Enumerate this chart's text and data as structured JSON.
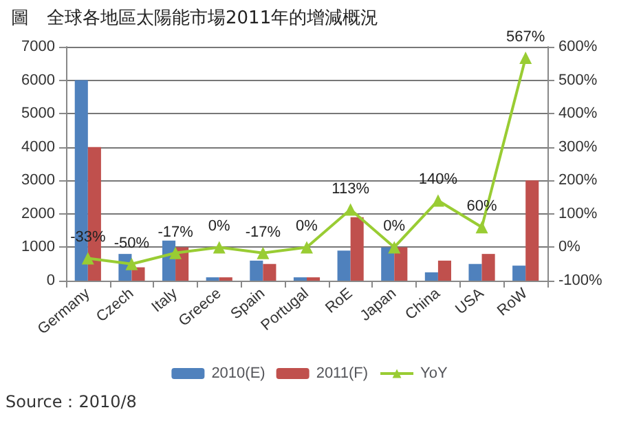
{
  "chart_data": {
    "type": "bar",
    "title": "圖　全球各地區太陽能市場2011年的增減概況",
    "categories": [
      "Germany",
      "Czech",
      "Italy",
      "Greece",
      "Spain",
      "Portugal",
      "RoE",
      "Japan",
      "China",
      "USA",
      "RoW"
    ],
    "series": [
      {
        "name": "2010(E)",
        "color": "#4f81bd",
        "values": [
          6000,
          800,
          1200,
          100,
          600,
          100,
          900,
          1000,
          250,
          500,
          450
        ]
      },
      {
        "name": "2011(F)",
        "color": "#c0504d",
        "values": [
          4000,
          400,
          1000,
          100,
          500,
          100,
          1900,
          1000,
          600,
          800,
          3000
        ]
      },
      {
        "name": "YoY",
        "type": "line",
        "axis": "y2",
        "color": "#99cc33",
        "values": [
          -33,
          -50,
          -17,
          0,
          -17,
          0,
          113,
          0,
          140,
          60,
          567
        ],
        "value_labels": [
          "-33%",
          "-50%",
          "-17%",
          "0%",
          "-17%",
          "0%",
          "113%",
          "0%",
          "140%",
          "60%",
          "567%"
        ]
      }
    ],
    "ylim": [
      0,
      7000
    ],
    "yticks": [
      0,
      1000,
      2000,
      3000,
      4000,
      5000,
      6000,
      7000
    ],
    "y2lim": [
      -100,
      600
    ],
    "y2ticks": [
      {
        "value": -100,
        "label": "-100%"
      },
      {
        "value": 0,
        "label": "0%"
      },
      {
        "value": 100,
        "label": "100%"
      },
      {
        "value": 200,
        "label": "200%"
      },
      {
        "value": 300,
        "label": "300%"
      },
      {
        "value": 400,
        "label": "400%"
      },
      {
        "value": 500,
        "label": "500%"
      },
      {
        "value": 600,
        "label": "600%"
      }
    ],
    "grid": "y",
    "legend": "bottom",
    "marker": "triangle",
    "annotations": [
      "Source：2010/8"
    ]
  }
}
